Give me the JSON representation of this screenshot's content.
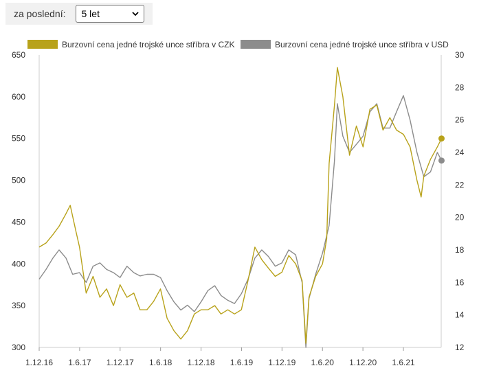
{
  "period": {
    "label": "za poslední:",
    "selected": "5 let"
  },
  "chart_data": {
    "type": "line",
    "legend_position": "top",
    "grid": false,
    "x_ticks": [
      "1.12.16",
      "1.6.17",
      "1.12.17",
      "1.6.18",
      "1.12.18",
      "1.6.19",
      "1.12.19",
      "1.6.20",
      "1.12.20",
      "1.6.21"
    ],
    "y_left": {
      "min": 300,
      "max": 650,
      "ticks": [
        300,
        350,
        400,
        450,
        500,
        550,
        600,
        650
      ]
    },
    "y_right": {
      "min": 12,
      "max": 30,
      "ticks": [
        12,
        14,
        16,
        18,
        20,
        22,
        24,
        26,
        28,
        30
      ]
    },
    "series": [
      {
        "name": "Burzovní cena jedné trojské unce stříbra v CZK",
        "axis": "left",
        "color": "#b8a21a",
        "x": [
          "2016-12-01",
          "2017-01-01",
          "2017-02-01",
          "2017-03-01",
          "2017-04-01",
          "2017-04-20",
          "2017-05-15",
          "2017-06-01",
          "2017-07-01",
          "2017-08-01",
          "2017-09-01",
          "2017-10-01",
          "2017-11-01",
          "2017-12-01",
          "2018-01-01",
          "2018-02-01",
          "2018-03-01",
          "2018-04-01",
          "2018-05-01",
          "2018-06-01",
          "2018-07-01",
          "2018-08-01",
          "2018-09-01",
          "2018-10-01",
          "2018-11-01",
          "2018-12-01",
          "2019-01-01",
          "2019-02-01",
          "2019-03-01",
          "2019-04-01",
          "2019-05-01",
          "2019-06-01",
          "2019-07-01",
          "2019-08-01",
          "2019-09-01",
          "2019-10-01",
          "2019-11-01",
          "2019-12-01",
          "2020-01-01",
          "2020-02-01",
          "2020-03-01",
          "2020-03-18",
          "2020-04-01",
          "2020-05-01",
          "2020-06-01",
          "2020-06-20",
          "2020-07-01",
          "2020-07-25",
          "2020-08-07",
          "2020-09-01",
          "2020-10-01",
          "2020-11-01",
          "2020-12-01",
          "2021-01-01",
          "2021-02-01",
          "2021-03-01",
          "2021-04-01",
          "2021-05-01",
          "2021-06-01",
          "2021-07-01",
          "2021-08-01",
          "2021-08-20",
          "2021-09-01",
          "2021-10-01",
          "2021-11-01",
          "2021-11-20"
        ],
        "y": [
          420,
          425,
          435,
          445,
          460,
          470,
          440,
          420,
          365,
          385,
          360,
          370,
          350,
          375,
          360,
          365,
          345,
          345,
          355,
          370,
          335,
          320,
          310,
          320,
          340,
          345,
          345,
          350,
          340,
          345,
          340,
          345,
          380,
          420,
          405,
          395,
          385,
          390,
          410,
          400,
          380,
          305,
          360,
          385,
          400,
          430,
          520,
          590,
          635,
          600,
          530,
          565,
          540,
          585,
          590,
          560,
          575,
          560,
          555,
          540,
          500,
          480,
          505,
          525,
          540,
          550
        ]
      },
      {
        "name": "Burzovní cena jedné trojské unce stříbra v USD",
        "axis": "right",
        "color": "#8c8c8c",
        "x": [
          "2016-12-01",
          "2017-01-01",
          "2017-02-01",
          "2017-03-01",
          "2017-04-01",
          "2017-05-01",
          "2017-06-01",
          "2017-07-01",
          "2017-08-01",
          "2017-09-01",
          "2017-10-01",
          "2017-11-01",
          "2017-12-01",
          "2018-01-01",
          "2018-02-01",
          "2018-03-01",
          "2018-04-01",
          "2018-05-01",
          "2018-06-01",
          "2018-07-01",
          "2018-08-01",
          "2018-09-01",
          "2018-10-01",
          "2018-11-01",
          "2018-12-01",
          "2019-01-01",
          "2019-02-01",
          "2019-03-01",
          "2019-04-01",
          "2019-05-01",
          "2019-06-01",
          "2019-07-01",
          "2019-08-01",
          "2019-09-01",
          "2019-10-01",
          "2019-11-01",
          "2019-12-01",
          "2020-01-01",
          "2020-02-01",
          "2020-03-01",
          "2020-03-18",
          "2020-04-01",
          "2020-05-01",
          "2020-06-01",
          "2020-07-01",
          "2020-07-25",
          "2020-08-07",
          "2020-09-01",
          "2020-10-01",
          "2020-11-01",
          "2020-12-01",
          "2021-01-01",
          "2021-02-01",
          "2021-03-01",
          "2021-04-01",
          "2021-05-01",
          "2021-06-01",
          "2021-07-01",
          "2021-08-01",
          "2021-09-01",
          "2021-10-01",
          "2021-11-01",
          "2021-11-20"
        ],
        "y": [
          16.2,
          16.8,
          17.5,
          18.0,
          17.5,
          16.5,
          16.6,
          16.0,
          17.0,
          17.2,
          16.8,
          16.6,
          16.3,
          17.0,
          16.6,
          16.4,
          16.5,
          16.5,
          16.3,
          15.5,
          14.8,
          14.3,
          14.6,
          14.2,
          14.8,
          15.5,
          15.8,
          15.2,
          14.9,
          14.7,
          15.3,
          16.2,
          17.5,
          18.0,
          17.6,
          17.0,
          17.2,
          18.0,
          17.7,
          16.0,
          12.0,
          15.0,
          16.5,
          17.8,
          19.5,
          23.5,
          27.0,
          25.0,
          24.0,
          24.5,
          25.0,
          26.5,
          27.0,
          25.5,
          25.5,
          26.5,
          27.5,
          26.0,
          24.0,
          22.5,
          22.8,
          24.0,
          23.5
        ]
      }
    ]
  }
}
